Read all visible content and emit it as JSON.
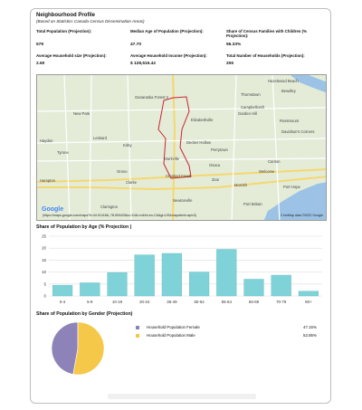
{
  "profile": {
    "title": "Neighbourhood Profile",
    "subtitle": "(Based on Statistics Canada Census Dissemination Areas)",
    "stats": [
      {
        "label": "Total Population (Projection):",
        "value": "579"
      },
      {
        "label": "Median Age of Population (Projection):",
        "value": "47.70"
      },
      {
        "label": "Share of Census Families with Children (% Projection):",
        "value": "56.33%"
      },
      {
        "label": "Average Household size (Projection):",
        "value": "2.60"
      },
      {
        "label": "Average Household Income (Projection):",
        "value": "$ 128,515.42"
      },
      {
        "label": "Total Number of Households (Projection):",
        "value": "206"
      }
    ]
  },
  "map": {
    "labels": [
      "Hazelwood Beach",
      "Bewdley",
      "Thomstown",
      "Ganaraska Forest 2",
      "Campbellcroft",
      "Garden Hill",
      "New Park",
      "Elizabethville",
      "Rossmount",
      "Davidson's Corners",
      "Haydon",
      "Leskard",
      "Kirby",
      "Decker Hollow",
      "Perrytown",
      "Tyrone",
      "Welcome",
      "Orono",
      "Starkville",
      "Osaca",
      "Canton",
      "Hampton",
      "Crooked Creek",
      "Zion",
      "Morrish",
      "Port Hope",
      "Clarke",
      "Newtonville",
      "Port Britain",
      "Clarington"
    ],
    "logo": "Google",
    "url": "(https://maps.google.com/maps?ll=44.014166,-78.500425&z=11&t=m&hl=en-CA&gl=US&mapclient=apiv3)",
    "attribution": "2 kmMap data ©2022 Google",
    "road_color": "#f5d76e",
    "boundary_color": "#cc2233",
    "water_color": "#9cc3e6"
  },
  "age_section": {
    "title": "Share of Population by Age (% Projection )"
  },
  "gender_section": {
    "title": "Share of Population by Gender (Projection)"
  },
  "chart_data": [
    {
      "type": "bar",
      "categories": [
        "0-4",
        "5-9",
        "10-19",
        "20-34",
        "35-49",
        "50-54",
        "55-64",
        "65-69",
        "70-79",
        "80+"
      ],
      "values": [
        4.5,
        5.5,
        9.8,
        17.2,
        17.8,
        10.0,
        19.5,
        7.0,
        8.7,
        2.0
      ],
      "ylim": [
        0,
        25
      ],
      "yticks": [
        "0",
        "5",
        "10",
        "15",
        "20",
        "25"
      ],
      "bar_color": "#7fd3d8",
      "grid": true
    },
    {
      "type": "pie",
      "categories": [
        "Household Population Female",
        "Household Population Male"
      ],
      "values": [
        47.15,
        52.85
      ],
      "value_labels": [
        "47.15%",
        "52.85%"
      ],
      "colors": [
        "#8e83b8",
        "#f5c84a"
      ]
    }
  ]
}
